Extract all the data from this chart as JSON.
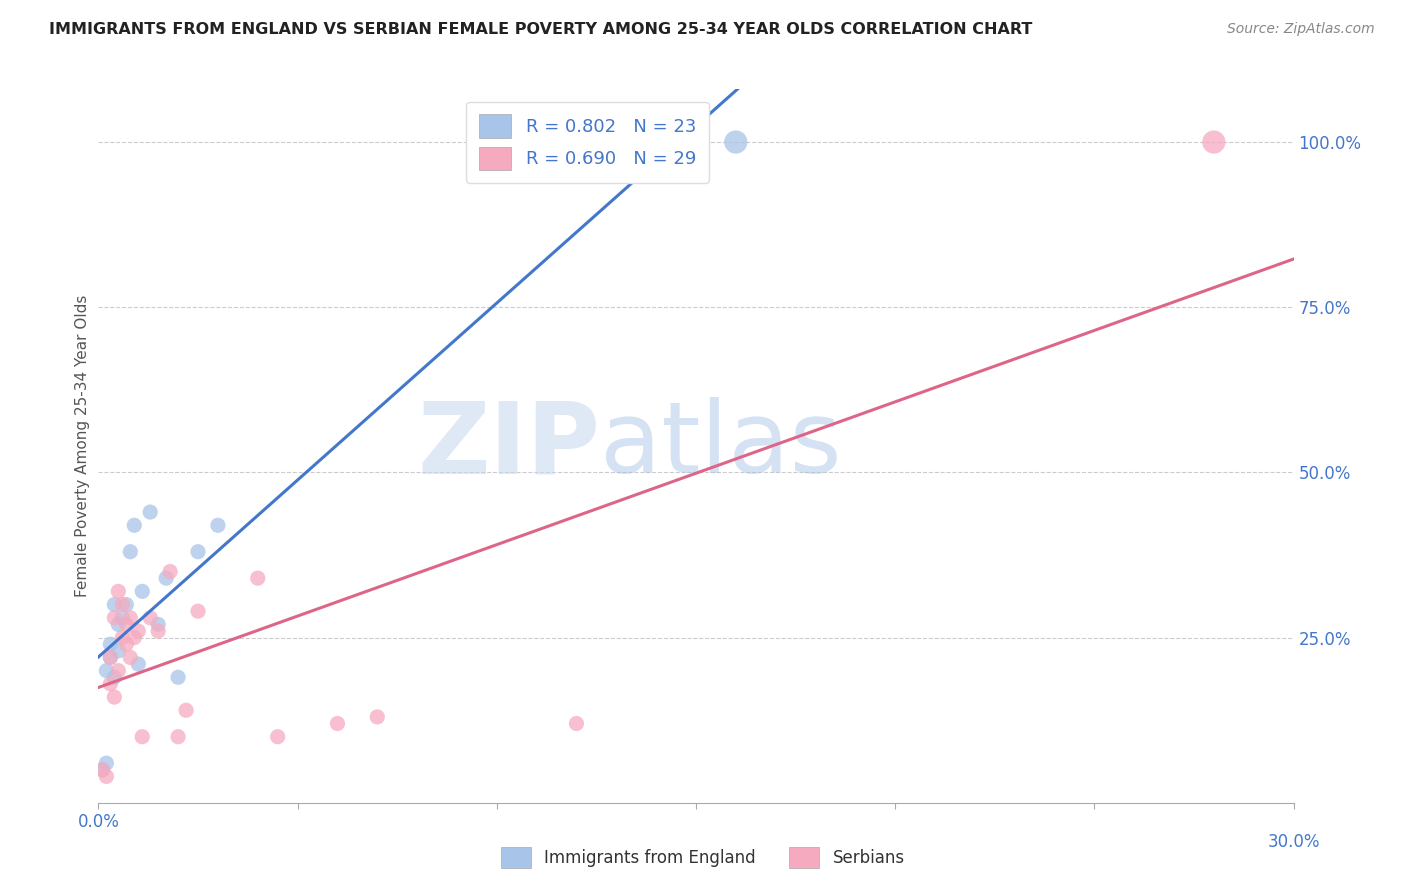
{
  "title": "IMMIGRANTS FROM ENGLAND VS SERBIAN FEMALE POVERTY AMONG 25-34 YEAR OLDS CORRELATION CHART",
  "source": "Source: ZipAtlas.com",
  "ylabel": "Female Poverty Among 25-34 Year Olds",
  "xlim": [
    0.0,
    0.3
  ],
  "ylim": [
    0.0,
    1.08
  ],
  "blue_R": "0.802",
  "blue_N": "23",
  "pink_R": "0.690",
  "pink_N": "29",
  "blue_color": "#a8c4e8",
  "pink_color": "#f5aabf",
  "blue_line_color": "#4477cc",
  "pink_line_color": "#dd6688",
  "watermark_zip": "ZIP",
  "watermark_atlas": "atlas",
  "legend_label_blue": "Immigrants from England",
  "legend_label_pink": "Serbians",
  "blue_scatter_x": [
    0.001,
    0.002,
    0.002,
    0.003,
    0.003,
    0.004,
    0.004,
    0.005,
    0.005,
    0.006,
    0.007,
    0.008,
    0.009,
    0.01,
    0.011,
    0.013,
    0.015,
    0.017,
    0.02,
    0.025,
    0.03,
    0.13,
    0.16
  ],
  "blue_scatter_y": [
    0.05,
    0.06,
    0.2,
    0.22,
    0.24,
    0.19,
    0.3,
    0.23,
    0.27,
    0.28,
    0.3,
    0.38,
    0.42,
    0.21,
    0.32,
    0.44,
    0.27,
    0.34,
    0.19,
    0.38,
    0.42,
    0.99,
    1.0
  ],
  "pink_scatter_x": [
    0.001,
    0.002,
    0.003,
    0.003,
    0.004,
    0.004,
    0.005,
    0.005,
    0.006,
    0.006,
    0.007,
    0.007,
    0.008,
    0.008,
    0.009,
    0.01,
    0.011,
    0.013,
    0.015,
    0.018,
    0.02,
    0.022,
    0.025,
    0.04,
    0.045,
    0.06,
    0.07,
    0.12,
    0.28
  ],
  "pink_scatter_y": [
    0.05,
    0.04,
    0.18,
    0.22,
    0.16,
    0.28,
    0.2,
    0.32,
    0.25,
    0.3,
    0.24,
    0.27,
    0.22,
    0.28,
    0.25,
    0.26,
    0.1,
    0.28,
    0.26,
    0.35,
    0.1,
    0.14,
    0.29,
    0.34,
    0.1,
    0.12,
    0.13,
    0.12,
    1.0
  ],
  "blue_scatter_sizes": [
    120,
    120,
    120,
    120,
    120,
    120,
    120,
    120,
    120,
    120,
    120,
    120,
    120,
    120,
    120,
    120,
    120,
    120,
    120,
    120,
    120,
    280,
    280
  ],
  "pink_scatter_sizes": [
    120,
    120,
    120,
    120,
    120,
    120,
    120,
    120,
    120,
    120,
    120,
    120,
    120,
    120,
    120,
    120,
    120,
    120,
    120,
    120,
    120,
    120,
    120,
    120,
    120,
    120,
    120,
    120,
    280
  ],
  "xtick_positions": [
    0.0,
    0.05,
    0.1,
    0.15,
    0.2,
    0.25,
    0.3
  ],
  "ytick_positions": [
    0.0,
    0.25,
    0.5,
    0.75,
    1.0
  ],
  "ytick_labels": [
    "",
    "25.0%",
    "50.0%",
    "75.0%",
    "100.0%"
  ]
}
